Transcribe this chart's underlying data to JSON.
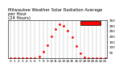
{
  "title": "Milwaukee Weather Solar Radiation Average\nper Hour\n(24 Hours)",
  "hours": [
    0,
    1,
    2,
    3,
    4,
    5,
    6,
    7,
    8,
    9,
    10,
    11,
    12,
    13,
    14,
    15,
    16,
    17,
    18,
    19,
    20,
    21,
    22,
    23
  ],
  "values": [
    0,
    0,
    0,
    0,
    0,
    0,
    2,
    15,
    60,
    120,
    200,
    270,
    310,
    300,
    250,
    190,
    110,
    45,
    10,
    2,
    0,
    0,
    0,
    0
  ],
  "ylim": [
    0,
    350
  ],
  "xlim": [
    -0.5,
    23.5
  ],
  "dot_color": "#ff0000",
  "bg_color": "#ffffff",
  "grid_color": "#888888",
  "title_fontsize": 3.8,
  "tick_fontsize": 3.0,
  "legend_box_color": "#ff0000",
  "yticks": [
    50,
    100,
    150,
    200,
    250,
    300,
    350
  ]
}
